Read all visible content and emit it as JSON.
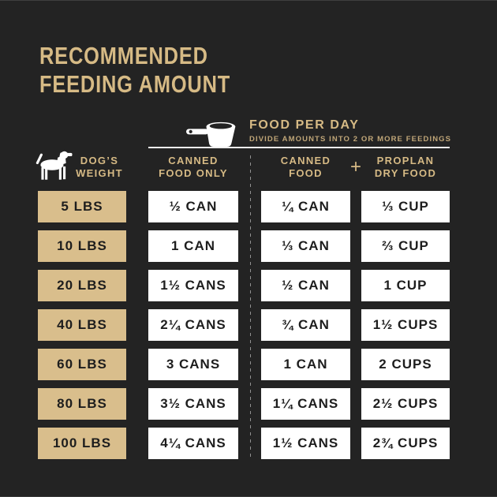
{
  "title": {
    "line1": "RECOMMENDED",
    "line2": "FEEDING AMOUNT"
  },
  "food_per_day": {
    "heading": "FOOD PER DAY",
    "subheading": "DIVIDE AMOUNTS INTO 2 OR MORE FEEDINGS",
    "icon": "measuring-cup-icon"
  },
  "header": {
    "weight": {
      "line1": "DOG’S",
      "line2": "WEIGHT",
      "icon": "dog-icon"
    },
    "canned_only": {
      "line1": "CANNED",
      "line2": "FOOD ONLY"
    },
    "canned": {
      "line1": "CANNED",
      "line2": "FOOD"
    },
    "plus": "+",
    "dry": {
      "line1": "PROPLAN",
      "line2": "DRY FOOD"
    }
  },
  "colors": {
    "background": "#232323",
    "tan": "#d9be8c",
    "gold": "#d6ba85",
    "gold_dim": "#c0a678",
    "cell_bg": "#ffffff",
    "cell_text": "#1d1d1d"
  },
  "chart_data": {
    "type": "table",
    "title": "RECOMMENDED FEEDING AMOUNT",
    "subtitle": "FOOD PER DAY — DIVIDE AMOUNTS INTO 2 OR MORE FEEDINGS",
    "columns": [
      "DOG’S WEIGHT",
      "CANNED FOOD ONLY",
      "CANNED FOOD",
      "PROPLAN DRY FOOD"
    ],
    "rows": [
      [
        "5 LBS",
        "½ CAN",
        "¼ CAN",
        "⅓ CUP"
      ],
      [
        "10 LBS",
        "1 CAN",
        "⅓ CAN",
        "⅔ CUP"
      ],
      [
        "20 LBS",
        "1½ CANS",
        "½ CAN",
        "1 CUP"
      ],
      [
        "40 LBS",
        "2¼ CANS",
        "¾ CAN",
        "1½ CUPS"
      ],
      [
        "60 LBS",
        "3 CANS",
        "1 CAN",
        "2 CUPS"
      ],
      [
        "80 LBS",
        "3½ CANS",
        "1¼ CANS",
        "2½ CUPS"
      ],
      [
        "100 LBS",
        "4¼ CANS",
        "1½ CANS",
        "2¾ CUPS"
      ]
    ]
  }
}
